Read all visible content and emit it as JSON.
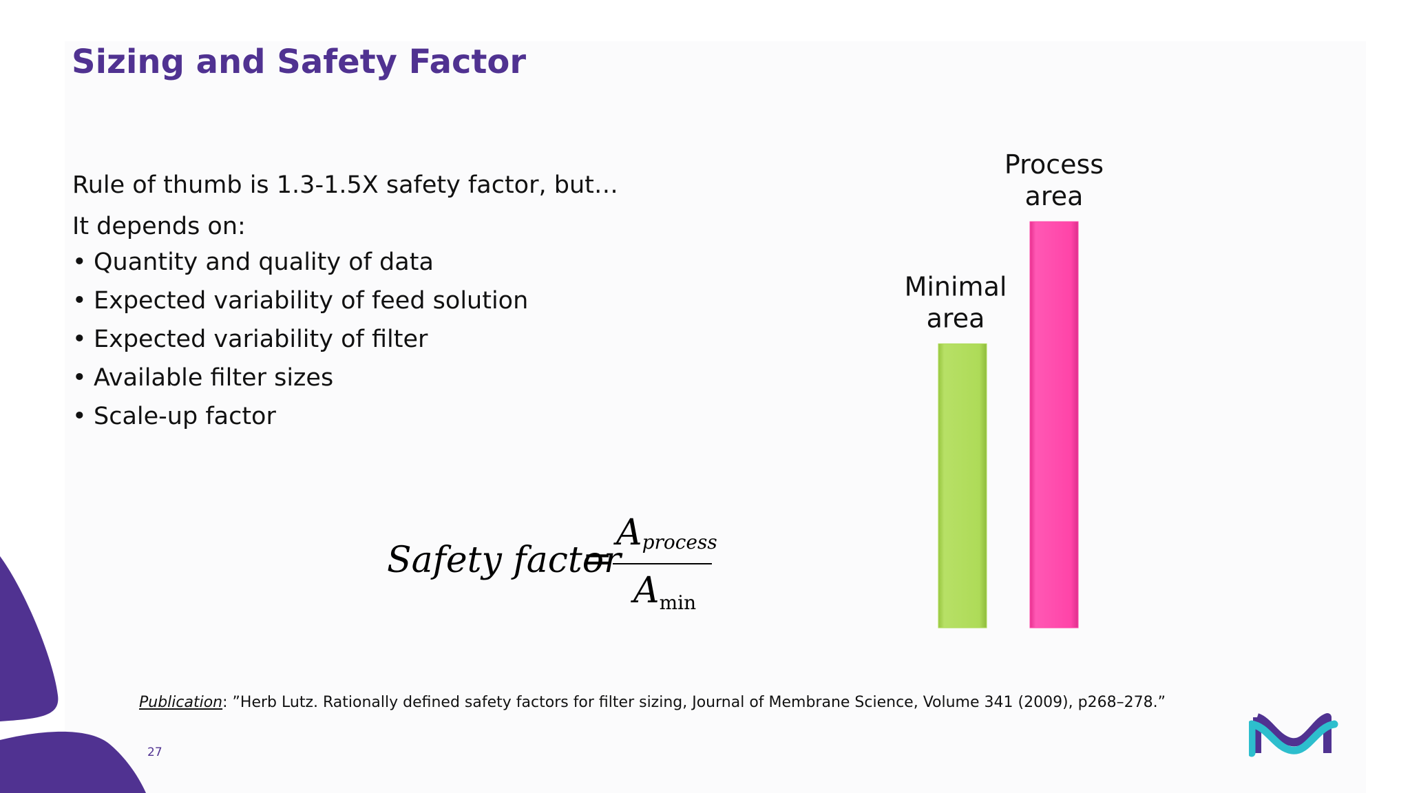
{
  "slide": {
    "title": "Sizing and Safety Factor",
    "lead": "Rule of thumb is 1.3-1.5X safety factor, but…",
    "depends_label": "It depends on:",
    "bullets": [
      "Quantity and quality of data",
      "Expected variability of feed solution",
      "Expected variability of filter",
      "Available filter sizes",
      "Scale-up factor"
    ],
    "page_number": "27"
  },
  "formula": {
    "lhs": "Safety factor",
    "equals": "=",
    "numerator_symbol": "A",
    "numerator_subscript": "process",
    "denominator_symbol": "A",
    "denominator_subscript": "min"
  },
  "citation": {
    "label": "Publication",
    "text": ": ”Herb Lutz. Rationally defined safety factors for filter sizing, Journal of Membrane Science, Volume 341 (2009), p268–278.”"
  },
  "chart_data": {
    "type": "bar",
    "title": "",
    "xlabel": "",
    "ylabel": "",
    "categories": [
      "Minimal area",
      "Process area"
    ],
    "label_lines": [
      [
        "Minimal",
        "area"
      ],
      [
        "Process",
        "area"
      ]
    ],
    "values": [
      1.0,
      1.43
    ],
    "ylim": [
      0,
      1.43
    ],
    "colors": [
      "#aedb58",
      "#ff44a8"
    ],
    "grid": false,
    "legend": "none"
  },
  "colors": {
    "brand_purple": "#503291",
    "teal": "#2dbecd",
    "bar_green": "#aedb58",
    "bar_pink": "#ff44a8"
  }
}
